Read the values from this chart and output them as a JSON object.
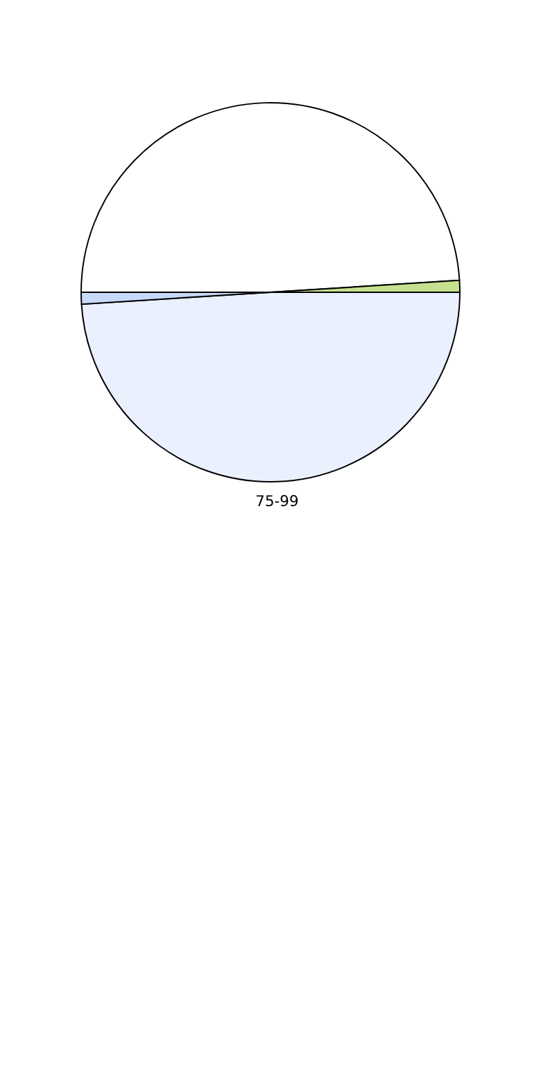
{
  "chart_data": {
    "type": "pie",
    "categories": [
      null,
      null,
      "75-99",
      null
    ],
    "values": [
      49,
      1,
      49,
      1
    ],
    "colors": [
      "#ffffff",
      "#c5e08f",
      "#eaf0fd",
      "#c6d9f8"
    ],
    "legend": false
  }
}
